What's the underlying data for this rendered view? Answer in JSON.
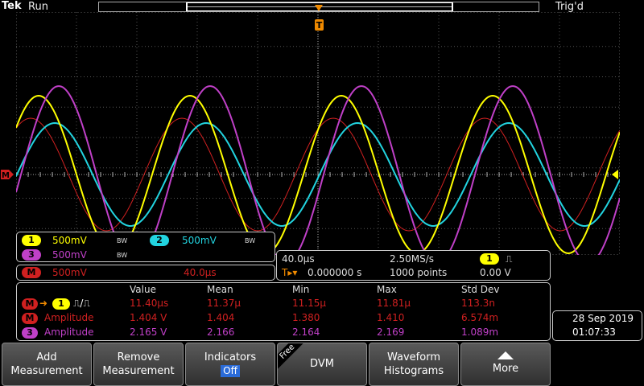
{
  "header": {
    "brand": "Tek",
    "status": "Run",
    "trigger_state": "Trig'd"
  },
  "trigger_marker": "T",
  "channel_panel": {
    "ch1": {
      "badge": "1",
      "scale": "500mV",
      "bw": "BW",
      "color": "#ffff00"
    },
    "ch2": {
      "badge": "2",
      "scale": "500mV",
      "bw": "BW",
      "color": "#22d4e0"
    },
    "ch3": {
      "badge": "3",
      "scale": "500mV",
      "bw": "BW",
      "color": "#c040c8"
    },
    "math": {
      "badge": "M",
      "scale": "500mV",
      "timescale": "40.0µs",
      "color": "#d02020"
    }
  },
  "timebase": {
    "horizontal": "40.0µs",
    "sample_rate": "2.50MS/s",
    "position": "0.000000 s",
    "record_length": "1000 points",
    "trigger_source": "1",
    "trigger_slope": "⎍",
    "trigger_level": "0.00 V"
  },
  "measurements": {
    "headers": [
      "Value",
      "Mean",
      "Min",
      "Max",
      "Std Dev"
    ],
    "rows": [
      {
        "src": "M",
        "src2": "1",
        "name": "⎍/⎍",
        "value": "11.40µs",
        "mean": "11.37µ",
        "min": "11.15µ",
        "max": "11.81µ",
        "std": "113.3n",
        "color": "#d02020"
      },
      {
        "src": "M",
        "name": "Amplitude",
        "value": "1.404 V",
        "mean": "1.404",
        "min": "1.380",
        "max": "1.410",
        "std": "6.574m",
        "color": "#d02020"
      },
      {
        "src": "3",
        "name": "Amplitude",
        "value": "2.165 V",
        "mean": "2.166",
        "min": "2.164",
        "max": "2.169",
        "std": "1.089m",
        "color": "#c040c8"
      }
    ]
  },
  "datetime": {
    "date": "28 Sep  2019",
    "time": "01:07:33"
  },
  "menu": {
    "add": "Add Measurement",
    "add_l1": "Add",
    "add_l2": "Measurement",
    "remove_l1": "Remove",
    "remove_l2": "Measurement",
    "indicators": "Indicators",
    "indicators_state": "Off",
    "free": "Free",
    "dvm": "DVM",
    "waveform_l1": "Waveform",
    "waveform_l2": "Histograms",
    "more": "More"
  }
}
